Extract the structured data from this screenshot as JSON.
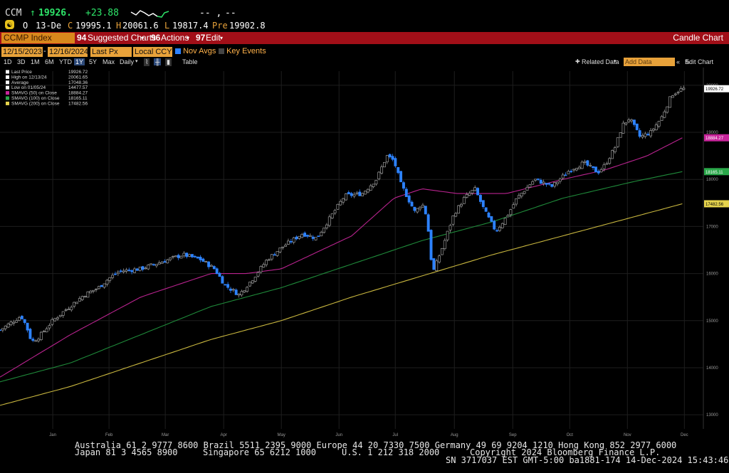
{
  "header": {
    "ticker": "CCM",
    "arrow": "↑",
    "last_price": "19926.",
    "change": "+23.88",
    "dashes": "-- ,",
    "dash2": "--",
    "open_badge": "O",
    "date": "13-De",
    "close_prefix": "C",
    "close": "19995.1",
    "high_prefix": "H",
    "high": "20061.6",
    "low_prefix": "L",
    "low": "19817.4",
    "pre_prefix": "Pre",
    "pre": "19902.8",
    "sparkline_icon": "sparkline-icon"
  },
  "menubar": {
    "ticker_box": "CCMP Index",
    "suggested_num": "94",
    "suggested_charts": "Suggested Charts",
    "actions_num": "96",
    "actions": "Actions",
    "edit_num": "97",
    "edit": "Edit",
    "right_label": "Candle Chart"
  },
  "toolbar": {
    "start_date": "12/15/2023",
    "end_date": "12/16/2024",
    "field": "Last Px",
    "currency": "Local CCY",
    "nov_avgs": "Nov Avgs",
    "key_events": "Key Events"
  },
  "periods": {
    "items": [
      "1D",
      "3D",
      "1M",
      "6M",
      "YTD",
      "1Y",
      "5Y",
      "Max"
    ],
    "selected": "1Y",
    "interval": "Daily",
    "table": "Table",
    "related": "Related Data",
    "add_data": "Add Data",
    "edit_chart": "Edit Chart",
    "arrow_left": "«"
  },
  "legend": [
    {
      "label": "Last Price",
      "value": "19926.72",
      "color": "#ffffff"
    },
    {
      "label": "High on 12/13/24",
      "value": "20061.65",
      "color": "#ffffff"
    },
    {
      "label": "Average",
      "value": "17048.36",
      "color": "#ffffff"
    },
    {
      "label": "Low on 01/05/24",
      "value": "14477.57",
      "color": "#ffffff"
    },
    {
      "label": "SMAVG (50)  on Close",
      "value": "18884.27",
      "color": "#c8259b"
    },
    {
      "label": "SMAVG (100)  on Close",
      "value": "18165.11",
      "color": "#2aa84a"
    },
    {
      "label": "SMAVG (200)  on Close",
      "value": "17482.56",
      "color": "#e6d44d"
    }
  ],
  "chart_data": {
    "type": "candlestick",
    "ylim": [
      12700,
      20300
    ],
    "yticks": [
      "20000",
      "19000",
      "18000",
      "17000",
      "16000",
      "15000",
      "14000",
      "13000"
    ],
    "ytick_values": [
      20000,
      19000,
      18000,
      17000,
      16000,
      15000,
      14000,
      13000
    ],
    "x_months": [
      {
        "label": "Jan",
        "pos": 0.075
      },
      {
        "label": "Feb",
        "pos": 0.155
      },
      {
        "label": "Mar",
        "pos": 0.235
      },
      {
        "label": "Apr",
        "pos": 0.318
      },
      {
        "label": "May",
        "pos": 0.4
      },
      {
        "label": "Jun",
        "pos": 0.482
      },
      {
        "label": "Jul",
        "pos": 0.562
      },
      {
        "label": "Aug",
        "pos": 0.646
      },
      {
        "label": "Sep",
        "pos": 0.729
      },
      {
        "label": "Oct",
        "pos": 0.81
      },
      {
        "label": "Nov",
        "pos": 0.892
      },
      {
        "label": "Dec",
        "pos": 0.973
      }
    ],
    "year_labels": [
      {
        "label": "2023",
        "pos": 0.012
      },
      {
        "label": "2024",
        "pos": 0.508
      }
    ],
    "right_labels": [
      {
        "text": "19926.72",
        "value": 19926.72,
        "bg": "#ffffff",
        "fg": "#000000"
      },
      {
        "text": "18884.27",
        "value": 18884.27,
        "bg": "#c8259b",
        "fg": "#ffffff"
      },
      {
        "text": "18165.11",
        "value": 18165.11,
        "bg": "#2aa84a",
        "fg": "#ffffff"
      },
      {
        "text": "17482.56",
        "value": 17482.56,
        "bg": "#e6d44d",
        "fg": "#000000"
      }
    ],
    "close_anchors": [
      [
        0,
        14800
      ],
      [
        0.03,
        15100
      ],
      [
        0.037,
        14900
      ],
      [
        0.045,
        14550
      ],
      [
        0.055,
        14650
      ],
      [
        0.075,
        15000
      ],
      [
        0.095,
        15250
      ],
      [
        0.12,
        15550
      ],
      [
        0.14,
        15700
      ],
      [
        0.155,
        15900
      ],
      [
        0.17,
        16050
      ],
      [
        0.2,
        16100
      ],
      [
        0.23,
        16250
      ],
      [
        0.26,
        16400
      ],
      [
        0.285,
        16300
      ],
      [
        0.305,
        16100
      ],
      [
        0.32,
        15750
      ],
      [
        0.34,
        15550
      ],
      [
        0.36,
        15900
      ],
      [
        0.38,
        16300
      ],
      [
        0.4,
        16550
      ],
      [
        0.43,
        16850
      ],
      [
        0.45,
        16750
      ],
      [
        0.47,
        17200
      ],
      [
        0.49,
        17650
      ],
      [
        0.515,
        17700
      ],
      [
        0.535,
        18000
      ],
      [
        0.55,
        18500
      ],
      [
        0.56,
        18400
      ],
      [
        0.57,
        17900
      ],
      [
        0.59,
        17300
      ],
      [
        0.6,
        17500
      ],
      [
        0.607,
        17200
      ],
      [
        0.615,
        16000
      ],
      [
        0.63,
        16600
      ],
      [
        0.645,
        17250
      ],
      [
        0.66,
        17600
      ],
      [
        0.675,
        17800
      ],
      [
        0.69,
        17300
      ],
      [
        0.705,
        16900
      ],
      [
        0.72,
        17200
      ],
      [
        0.735,
        17600
      ],
      [
        0.76,
        18000
      ],
      [
        0.785,
        17850
      ],
      [
        0.81,
        18200
      ],
      [
        0.83,
        18350
      ],
      [
        0.85,
        18150
      ],
      [
        0.86,
        18300
      ],
      [
        0.875,
        18700
      ],
      [
        0.885,
        19150
      ],
      [
        0.895,
        19300
      ],
      [
        0.91,
        18900
      ],
      [
        0.925,
        19000
      ],
      [
        0.94,
        19300
      ],
      [
        0.955,
        19800
      ],
      [
        0.97,
        19926
      ]
    ],
    "smavg50_anchors": [
      [
        0,
        13800
      ],
      [
        0.1,
        14700
      ],
      [
        0.2,
        15500
      ],
      [
        0.3,
        16000
      ],
      [
        0.35,
        16000
      ],
      [
        0.4,
        16100
      ],
      [
        0.5,
        16800
      ],
      [
        0.56,
        17600
      ],
      [
        0.6,
        17800
      ],
      [
        0.65,
        17700
      ],
      [
        0.72,
        17700
      ],
      [
        0.8,
        18000
      ],
      [
        0.86,
        18200
      ],
      [
        0.92,
        18500
      ],
      [
        0.97,
        18884
      ]
    ],
    "smavg100_anchors": [
      [
        0,
        13700
      ],
      [
        0.1,
        14100
      ],
      [
        0.2,
        14700
      ],
      [
        0.3,
        15300
      ],
      [
        0.4,
        15700
      ],
      [
        0.5,
        16200
      ],
      [
        0.6,
        16700
      ],
      [
        0.7,
        17100
      ],
      [
        0.8,
        17600
      ],
      [
        0.9,
        17950
      ],
      [
        0.97,
        18165
      ]
    ],
    "smavg200_anchors": [
      [
        0,
        13200
      ],
      [
        0.1,
        13600
      ],
      [
        0.2,
        14100
      ],
      [
        0.3,
        14600
      ],
      [
        0.4,
        15000
      ],
      [
        0.5,
        15500
      ],
      [
        0.6,
        15950
      ],
      [
        0.7,
        16400
      ],
      [
        0.8,
        16800
      ],
      [
        0.9,
        17200
      ],
      [
        0.97,
        17482
      ]
    ],
    "colors": {
      "up": "#9a9a9a",
      "down": "#2d82ff",
      "sma50": "#b8238e",
      "sma100": "#1f8a3a",
      "sma200": "#c9b73f",
      "grid": "#1e1e1e"
    }
  },
  "footer": {
    "line1": "Australia 61 2 9777 8600 Brazil 5511 2395 9000 Europe 44 20 7330 7500 Germany 49 69 9204 1210 Hong Kong 852 2977 6000",
    "line2a": "Japan 81 3 4565 8900",
    "line2b": "Singapore 65 6212 1000",
    "line2c": "U.S. 1 212 318 2000",
    "line2d": "Copyright 2024 Bloomberg Finance L.P.",
    "line3": "SN 3717037 EST  GMT-5:00 ba1881-174 14-Dec-2024 15:43:46"
  }
}
